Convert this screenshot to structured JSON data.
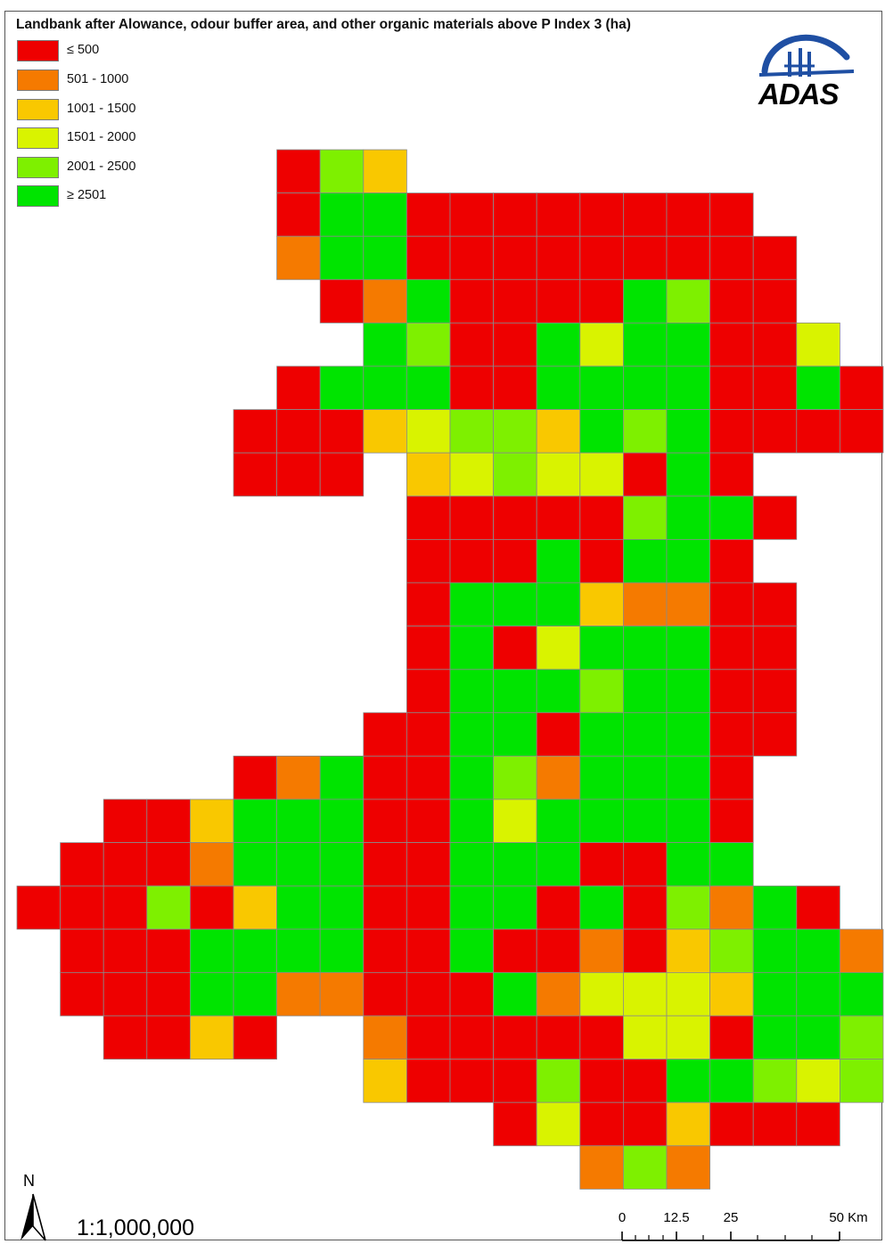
{
  "title": "Landbank after Alowance, odour buffer area, and other organic materials above P Index 3 (ha)",
  "legend": [
    {
      "label": "≤ 500",
      "color": "#EE0000"
    },
    {
      "label": "501 - 1000",
      "color": "#F57A00"
    },
    {
      "label": "1001 - 1500",
      "color": "#F9C800"
    },
    {
      "label": "1501 - 2000",
      "color": "#D9F300"
    },
    {
      "label": "2001 - 2500",
      "color": "#7EF000"
    },
    {
      "label": "≥ 2501",
      "color": "#00E400"
    }
  ],
  "logo": {
    "text": "ADAS",
    "icon": "adas-arc-logo-icon",
    "color": "#1F4FA3"
  },
  "north_arrow": {
    "letter": "N"
  },
  "scale": {
    "ratio": "1:1,000,000",
    "ticks": [
      "0",
      "12.5",
      "25",
      "50 Km"
    ]
  },
  "grid": {
    "key": {
      ".": null,
      "R": 0,
      "O": 1,
      "Y": 2,
      "L": 3,
      "G": 4,
      "B": 5
    },
    "start_col": 0,
    "start_row": 0,
    "rows": [
      "......RGY..........",
      "......RBBRRRRRRRR..",
      "......OBBRRRRRRRRR.",
      ".......ROBRRRRBGRR.",
      "........BGRRBLBBRRL.",
      "......RBBBRRBBBBRRBR",
      ".....RRRYLGGYBGBRRRR",
      ".....RRR.YLGLLRBR...",
      ".........RRRRRGBBR..",
      ".........RRRBRBBR...",
      ".........RBBBYOORR..",
      ".........RBRLBBBRR..",
      ".........RBBBGBBRR..",
      "........RRBBRBBBRR..",
      ".....ROBRRBGOBBBR...",
      "..RRYBBBRRBLBBBBR...",
      ".RRROBBBRRBBBRRBB...",
      "RRRGRYBBRRBBRBRGOBR.",
      ".RRRBBBBRRBRRORYGBBO",
      ".RRRBBOORRRBOLLLYBBB",
      "..RRYR..ORRRRRLLRBBG",
      "........YRRRGRRBBGLG",
      "...........RLRRYRRR.",
      ".............OGO...."
    ]
  }
}
